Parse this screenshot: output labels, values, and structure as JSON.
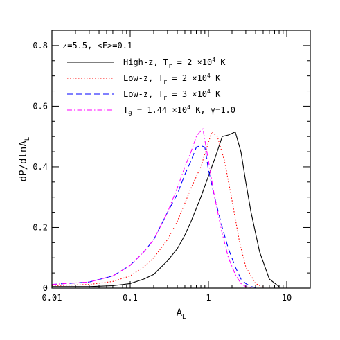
{
  "chart_data": {
    "type": "line",
    "x_scale": "log",
    "xlim": [
      0.01,
      20
    ],
    "ylim": [
      0,
      0.85
    ],
    "x_ticks": [
      {
        "value": 0.01,
        "label": "0.01"
      },
      {
        "value": 0.1,
        "label": "0.1"
      },
      {
        "value": 1,
        "label": "1"
      },
      {
        "value": 10,
        "label": "10"
      }
    ],
    "y_ticks": [
      {
        "value": 0,
        "label": "0"
      },
      {
        "value": 0.2,
        "label": "0.2"
      },
      {
        "value": 0.4,
        "label": "0.4"
      },
      {
        "value": 0.6,
        "label": "0.6"
      },
      {
        "value": 0.8,
        "label": "0.8"
      }
    ],
    "xlabel": {
      "main": "A",
      "sub": "L"
    },
    "ylabel": {
      "main": "dP/dlnA",
      "sub": "L"
    },
    "annotation": "z=5.5, <F>=0.1",
    "legend_location": "upper-left",
    "series": [
      {
        "name": {
          "a": "High-z, T",
          "sub": "r",
          "b": " = 2 ×10",
          "sup": "4",
          "c": " K"
        },
        "color": "#000000",
        "dash": "",
        "x": [
          0.01,
          0.03,
          0.06,
          0.1,
          0.15,
          0.2,
          0.3,
          0.4,
          0.5,
          0.6,
          0.8,
          1.0,
          1.2,
          1.5,
          1.8,
          2.2,
          2.6,
          3.0,
          3.5,
          4.5,
          6.0,
          8.0
        ],
        "y": [
          0.005,
          0.005,
          0.008,
          0.015,
          0.03,
          0.045,
          0.09,
          0.13,
          0.175,
          0.22,
          0.3,
          0.37,
          0.425,
          0.5,
          0.505,
          0.515,
          0.45,
          0.35,
          0.25,
          0.12,
          0.03,
          0.005
        ]
      },
      {
        "name": {
          "a": "Low-z, T",
          "sub": "r",
          "b": " = 2 ×10",
          "sup": "4",
          "c": " K"
        },
        "color": "#ff0000",
        "dash": "1.5,2.5",
        "x": [
          0.01,
          0.03,
          0.06,
          0.1,
          0.15,
          0.2,
          0.3,
          0.4,
          0.5,
          0.6,
          0.8,
          1.0,
          1.1,
          1.3,
          1.6,
          2.0,
          2.5,
          3.0,
          4.0,
          5.0
        ],
        "y": [
          0.008,
          0.012,
          0.022,
          0.04,
          0.07,
          0.1,
          0.16,
          0.22,
          0.28,
          0.33,
          0.4,
          0.48,
          0.515,
          0.5,
          0.42,
          0.29,
          0.15,
          0.07,
          0.015,
          0.003
        ]
      },
      {
        "name": {
          "a": "Low-z, T",
          "sub": "r",
          "b": " = 3 ×10",
          "sup": "4",
          "c": " K"
        },
        "color": "#0000ff",
        "dash": "8,5",
        "x": [
          0.01,
          0.03,
          0.06,
          0.1,
          0.15,
          0.2,
          0.3,
          0.4,
          0.5,
          0.6,
          0.7,
          0.8,
          0.9,
          1.0,
          1.2,
          1.5,
          1.8,
          2.2,
          2.6,
          3.0,
          3.5,
          4.0
        ],
        "y": [
          0.012,
          0.02,
          0.04,
          0.075,
          0.12,
          0.16,
          0.25,
          0.31,
          0.375,
          0.42,
          0.465,
          0.47,
          0.465,
          0.39,
          0.3,
          0.2,
          0.13,
          0.07,
          0.03,
          0.015,
          0.005,
          0.002
        ]
      },
      {
        "name": {
          "a": "T",
          "sub": "0",
          "b": " = 1.44 ×10",
          "sup": "4",
          "c": " K, γ=1.0"
        },
        "color": "#ff00ff",
        "dash": "7,3,1.5,3",
        "x": [
          0.01,
          0.03,
          0.06,
          0.1,
          0.15,
          0.2,
          0.3,
          0.4,
          0.5,
          0.6,
          0.7,
          0.8,
          0.85,
          1.0,
          1.2,
          1.5,
          1.8,
          2.2,
          2.6,
          3.0,
          3.5
        ],
        "y": [
          0.012,
          0.02,
          0.04,
          0.075,
          0.12,
          0.16,
          0.25,
          0.33,
          0.4,
          0.45,
          0.5,
          0.52,
          0.525,
          0.42,
          0.3,
          0.18,
          0.1,
          0.045,
          0.015,
          0.005,
          0.002
        ]
      }
    ]
  }
}
